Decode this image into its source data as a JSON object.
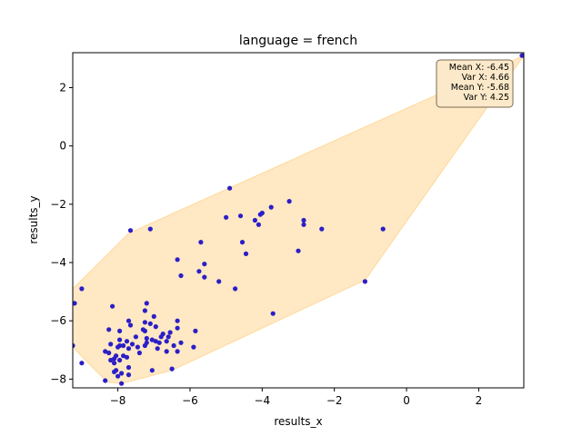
{
  "chart_data": {
    "type": "scatter",
    "title": "language = french",
    "xlabel": "results_x",
    "ylabel": "results_y",
    "xlim": [
      -9.25,
      3.25
    ],
    "ylim": [
      -8.3,
      3.2
    ],
    "xticks": [
      -8,
      -6,
      -4,
      -2,
      0,
      2
    ],
    "yticks": [
      -8,
      -6,
      -4,
      -2,
      0,
      2
    ],
    "point_color": "#2b1fc7",
    "hull_color": "#ffe8c4",
    "hull_edge_color": "#ffd99a",
    "hull": [
      [
        3.25,
        3.1
      ],
      [
        -7.7,
        -3.0
      ],
      [
        -9.25,
        -4.9
      ],
      [
        -9.25,
        -6.9
      ],
      [
        -8.3,
        -8.1
      ],
      [
        -7.9,
        -8.15
      ],
      [
        -6.5,
        -7.7
      ],
      [
        -1.15,
        -4.6
      ]
    ],
    "stats": {
      "lines": [
        "Mean X: -6.45",
        "Var X: 4.66",
        "Mean Y: -5.68",
        "Var Y: 4.25"
      ]
    },
    "points": [
      [
        3.2,
        3.1
      ],
      [
        1.75,
        1.4
      ],
      [
        -4.9,
        -1.45
      ],
      [
        -3.25,
        -1.9
      ],
      [
        -3.75,
        -2.1
      ],
      [
        -4.0,
        -2.3
      ],
      [
        -4.05,
        -2.35
      ],
      [
        -4.2,
        -2.55
      ],
      [
        -4.1,
        -2.7
      ],
      [
        -4.6,
        -2.4
      ],
      [
        -5.0,
        -2.45
      ],
      [
        -2.85,
        -2.55
      ],
      [
        -2.85,
        -2.7
      ],
      [
        -2.35,
        -2.85
      ],
      [
        -0.65,
        -2.85
      ],
      [
        -7.1,
        -2.85
      ],
      [
        -7.65,
        -2.9
      ],
      [
        -4.55,
        -3.3
      ],
      [
        -5.7,
        -3.3
      ],
      [
        -3.0,
        -3.6
      ],
      [
        -4.45,
        -3.7
      ],
      [
        -6.35,
        -3.9
      ],
      [
        -5.6,
        -4.05
      ],
      [
        -5.75,
        -4.3
      ],
      [
        -6.25,
        -4.45
      ],
      [
        -5.6,
        -4.5
      ],
      [
        -5.2,
        -4.65
      ],
      [
        -1.15,
        -4.65
      ],
      [
        -4.75,
        -4.9
      ],
      [
        -9.2,
        -5.4
      ],
      [
        -9.0,
        -4.9
      ],
      [
        -8.15,
        -5.5
      ],
      [
        -3.7,
        -5.75
      ],
      [
        -7.2,
        -5.4
      ],
      [
        -7.25,
        -5.65
      ],
      [
        -7.0,
        -5.85
      ],
      [
        -7.7,
        -6.0
      ],
      [
        -7.25,
        -6.05
      ],
      [
        -7.1,
        -6.1
      ],
      [
        -6.35,
        -6.0
      ],
      [
        -7.65,
        -6.15
      ],
      [
        -6.95,
        -6.2
      ],
      [
        -8.25,
        -6.3
      ],
      [
        -7.95,
        -6.35
      ],
      [
        -7.25,
        -6.35
      ],
      [
        -6.55,
        -6.4
      ],
      [
        -5.85,
        -6.35
      ],
      [
        -6.75,
        -6.45
      ],
      [
        -7.5,
        -6.55
      ],
      [
        -7.2,
        -6.6
      ],
      [
        -7.05,
        -6.65
      ],
      [
        -6.95,
        -6.7
      ],
      [
        -7.75,
        -6.7
      ],
      [
        -7.95,
        -6.65
      ],
      [
        -8.2,
        -6.8
      ],
      [
        -7.95,
        -6.85
      ],
      [
        -7.85,
        -6.85
      ],
      [
        -6.85,
        -6.75
      ],
      [
        -6.65,
        -6.7
      ],
      [
        -6.6,
        -6.55
      ],
      [
        -6.25,
        -6.75
      ],
      [
        -7.6,
        -6.8
      ],
      [
        -7.7,
        -6.95
      ],
      [
        -7.45,
        -6.9
      ],
      [
        -6.9,
        -6.95
      ],
      [
        -6.45,
        -6.85
      ],
      [
        -7.2,
        -6.75
      ],
      [
        -7.25,
        -6.85
      ],
      [
        -5.9,
        -6.9
      ],
      [
        -9.25,
        -6.85
      ],
      [
        -8.35,
        -7.05
      ],
      [
        -8.25,
        -7.1
      ],
      [
        -7.85,
        -7.2
      ],
      [
        -7.75,
        -7.25
      ],
      [
        -8.1,
        -7.3
      ],
      [
        -7.4,
        -7.1
      ],
      [
        -6.65,
        -7.05
      ],
      [
        -6.35,
        -7.05
      ],
      [
        -7.95,
        -7.35
      ],
      [
        -8.1,
        -7.45
      ],
      [
        -8.2,
        -7.35
      ],
      [
        -9.0,
        -7.45
      ],
      [
        -7.7,
        -7.6
      ],
      [
        -8.05,
        -7.7
      ],
      [
        -7.9,
        -7.8
      ],
      [
        -7.7,
        -7.85
      ],
      [
        -8.0,
        -7.9
      ],
      [
        -7.05,
        -7.7
      ],
      [
        -6.5,
        -7.65
      ],
      [
        -8.1,
        -7.75
      ],
      [
        -8.35,
        -8.05
      ],
      [
        -7.9,
        -8.15
      ],
      [
        -6.35,
        -6.25
      ],
      [
        -7.3,
        -6.3
      ],
      [
        -8.0,
        -6.9
      ],
      [
        -8.05,
        -7.2
      ],
      [
        -6.8,
        -6.55
      ]
    ]
  }
}
